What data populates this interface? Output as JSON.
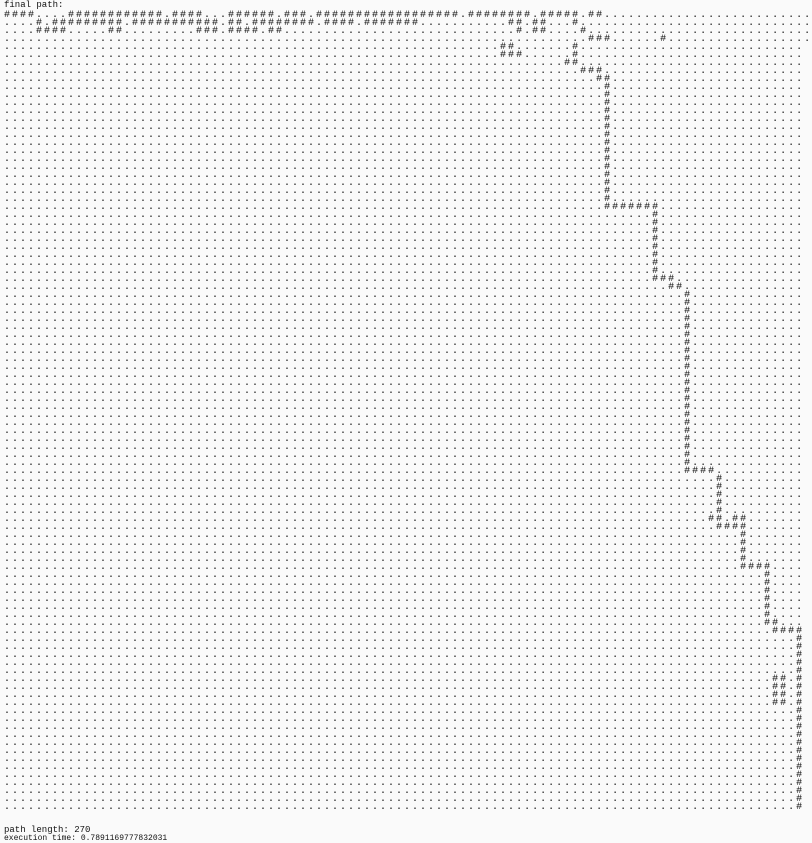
{
  "header": {
    "title": "final path:"
  },
  "grid": [
    "####....############.####...######.###.##################.########.#####.##............................",
    "....#.#########.###########.##.########.####.#######...........##.##...#.............................",
    "....####.....##.........###.####.##.............................#.##....#............................",
    ".........................................................................###......#...................",
    "..............................................................##.......#............................",
    "..............................................................###......#............................",
    "......................................................................##............................",
    "........................................................................###.........................",
    "..........................................................................##........................",
    "...........................................................................#........................",
    "...........................................................................#........................",
    "...........................................................................#........................",
    "...........................................................................#........................",
    "...........................................................................#........................",
    "...........................................................................#........................",
    "...........................................................................#........................",
    "...........................................................................#........................",
    "...........................................................................#........................",
    "...........................................................................#........................",
    "...........................................................................#........................",
    "...........................................................................#........................",
    "...........................................................................#........................",
    "...........................................................................#........................",
    "...........................................................................#........................",
    "...........................................................................#######..................",
    ".................................................................................#..................",
    ".................................................................................#..................",
    ".................................................................................#..................",
    ".................................................................................#..................",
    ".................................................................................#..................",
    ".................................................................................#..................",
    ".................................................................................#..................",
    ".................................................................................#..................",
    ".................................................................................###................",
    "...................................................................................##...............",
    ".....................................................................................#..............",
    ".....................................................................................#..............",
    ".....................................................................................#..............",
    ".....................................................................................#..............",
    ".....................................................................................#..............",
    ".....................................................................................#..............",
    ".....................................................................................#..............",
    ".....................................................................................#..............",
    ".....................................................................................#..............",
    ".....................................................................................#..............",
    ".....................................................................................#..............",
    ".....................................................................................#..............",
    ".....................................................................................#..............",
    ".....................................................................................#..............",
    ".....................................................................................#..............",
    ".....................................................................................#..............",
    ".....................................................................................#..............",
    ".....................................................................................#..............",
    ".....................................................................................#..............",
    ".....................................................................................#..............",
    ".....................................................................................#..............",
    ".....................................................................................#..............",
    ".....................................................................................####...........",
    ".........................................................................................#..........",
    ".........................................................................................#..........",
    ".........................................................................................#..........",
    ".........................................................................................#..........",
    ".........................................................................................#..........",
    "........................................................................................##.##.......",
    ".........................................................................................####.......",
    "............................................................................................#.......",
    "............................................................................................#.......",
    "............................................................................................#.......",
    "............................................................................................#.......",
    "............................................................................................####....",
    "...............................................................................................#....",
    "...............................................................................................#....",
    "...............................................................................................#....",
    "...............................................................................................#....",
    "...............................................................................................#....",
    "...............................................................................................#....",
    "...............................................................................................##...",
    "................................................................................................####",
    "...................................................................................................#",
    "...................................................................................................#",
    "...................................................................................................#",
    "...................................................................................................#",
    "...................................................................................................#",
    "................................................................................................##.#",
    "................................................................................................##.#",
    "................................................................................................##.#",
    "................................................................................................##.#",
    "...................................................................................................#",
    "...................................................................................................#",
    "...................................................................................................#",
    "...................................................................................................#",
    "...................................................................................................#",
    "...................................................................................................#",
    "...................................................................................................#",
    "...................................................................................................#",
    "...................................................................................................#",
    "...................................................................................................#",
    "...................................................................................................#",
    "...................................................................................................#",
    "...................................................................................................#"
  ],
  "footer": {
    "path_length": "path length: 270",
    "execution_time": "execution time: 0.7891169777832031"
  }
}
